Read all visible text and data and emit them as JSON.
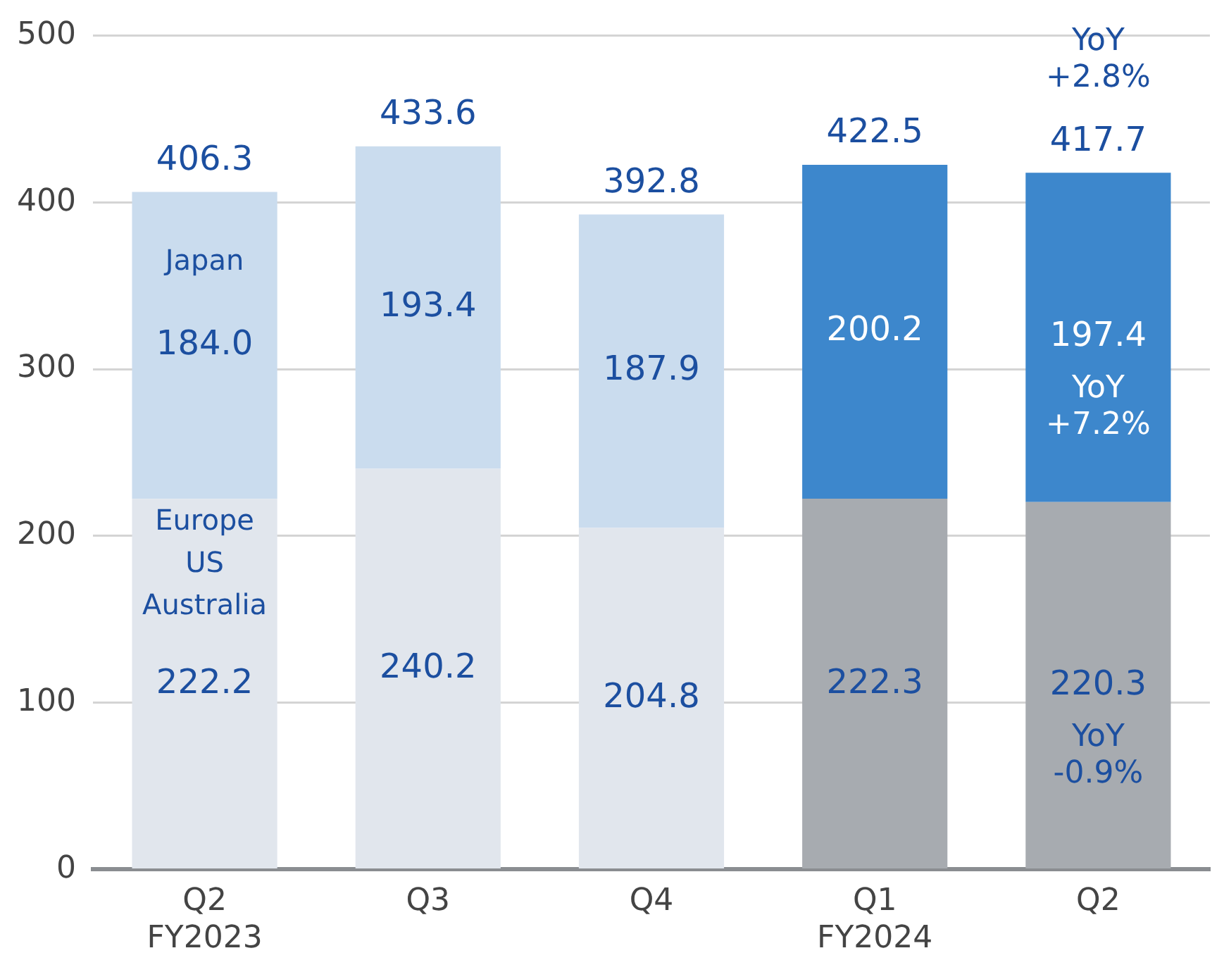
{
  "chart_data": {
    "type": "bar",
    "stacked": true,
    "categories": [
      "Q2\nFY2023",
      "Q3",
      "Q4",
      "Q1\nFY2024",
      "Q2"
    ],
    "series": [
      {
        "name": "Europe\nUS\nAustralia",
        "colors": [
          "#e1e6ed",
          "#e1e6ed",
          "#e1e6ed",
          "#a7abb0",
          "#a7abb0"
        ],
        "values": [
          222.2,
          240.2,
          204.8,
          222.3,
          220.3
        ],
        "value_labels": [
          "222.2",
          "240.2",
          "204.8",
          "222.3",
          "220.3"
        ]
      },
      {
        "name": "Japan",
        "colors": [
          "#cadcee",
          "#cadcee",
          "#cadcee",
          "#3d87cc",
          "#3d87cc"
        ],
        "values": [
          184.0,
          193.4,
          187.9,
          200.2,
          197.4
        ],
        "value_labels": [
          "184.0",
          "193.4",
          "187.9",
          "200.2",
          "197.4"
        ]
      }
    ],
    "totals": [
      "406.3",
      "433.6",
      "392.8",
      "422.5",
      "417.7"
    ],
    "annotations": [
      "YoY\n+2.8%",
      "YoY\n+7.2%",
      "YoY\n-0.9%"
    ],
    "ylim": [
      0,
      500
    ],
    "yticks": [
      0,
      100,
      200,
      300,
      400,
      500
    ],
    "grid": "y",
    "legend": false
  }
}
